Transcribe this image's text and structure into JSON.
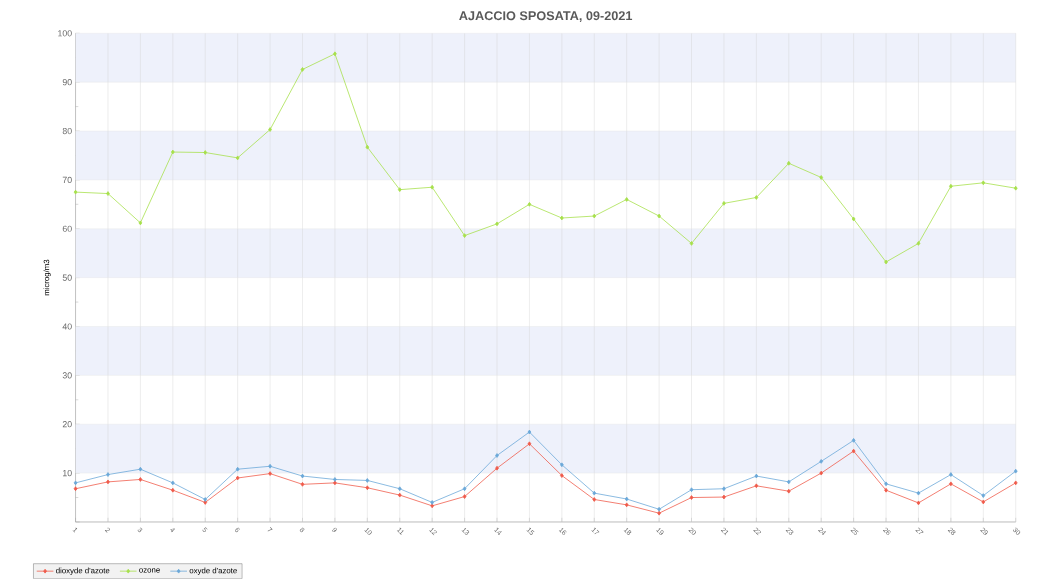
{
  "chart_data": {
    "type": "line",
    "title": "AJACCIO SPOSATA, 09-2021",
    "ylabel": "microg/m3",
    "categories": [
      "1",
      "2",
      "3",
      "4",
      "5",
      "6",
      "7",
      "8",
      "9",
      "10",
      "11",
      "12",
      "13",
      "14",
      "15",
      "16",
      "17",
      "18",
      "19",
      "20",
      "21",
      "22",
      "23",
      "24",
      "25",
      "26",
      "27",
      "28",
      "29",
      "30"
    ],
    "series": [
      {
        "name": "dioxyde d'azote",
        "color": "#f05a4a",
        "values": [
          6.8,
          8.2,
          8.7,
          6.5,
          4,
          9,
          9.9,
          7.7,
          8,
          7,
          5.5,
          3.3,
          5.2,
          11,
          16,
          9.5,
          4.6,
          3.5,
          1.8,
          5,
          5.1,
          7.4,
          6.3,
          10,
          14.5,
          6.5,
          3.9,
          7.8,
          4.1,
          8
        ]
      },
      {
        "name": "ozone",
        "color": "#a6e04a",
        "values": [
          67.5,
          67.2,
          61.2,
          75.7,
          75.6,
          74.5,
          80.3,
          92.6,
          95.8,
          76.7,
          68,
          68.5,
          58.6,
          61,
          65,
          62.2,
          62.6,
          66,
          62.6,
          57,
          65.2,
          66.4,
          73.4,
          70.5,
          62,
          53.2,
          57,
          68.7,
          69.4,
          68.3
        ]
      },
      {
        "name": "oxyde d'azote",
        "color": "#6aa8d8",
        "values": [
          8,
          9.7,
          10.8,
          8,
          4.6,
          10.8,
          11.4,
          9.4,
          8.7,
          8.5,
          6.8,
          4,
          6.8,
          13.6,
          18.4,
          11.7,
          5.9,
          4.7,
          2.6,
          6.6,
          6.8,
          9.4,
          8.2,
          12.4,
          16.7,
          7.8,
          5.9,
          9.7,
          5.4,
          10.4
        ]
      }
    ],
    "ylim": [
      0,
      100
    ],
    "yticks": [
      {
        "value": 0,
        "label": null
      },
      10,
      20,
      30,
      40,
      50,
      60,
      70,
      80,
      90,
      100
    ],
    "bands": [
      {
        "axis": "y",
        "from": 10,
        "to": 20,
        "color": "#eef1fb"
      },
      {
        "axis": "y",
        "from": 30,
        "to": 40,
        "color": "#eef1fb"
      },
      {
        "axis": "y",
        "from": 50,
        "to": 60,
        "color": "#eef1fb"
      },
      {
        "axis": "y",
        "from": 70,
        "to": 80,
        "color": "#eef1fb"
      },
      {
        "axis": "y",
        "from": 90,
        "to": 100,
        "color": "#eef1fb"
      }
    ],
    "grid": true,
    "legend": "bottom left",
    "marker": "diamond",
    "line_style": "solid"
  }
}
